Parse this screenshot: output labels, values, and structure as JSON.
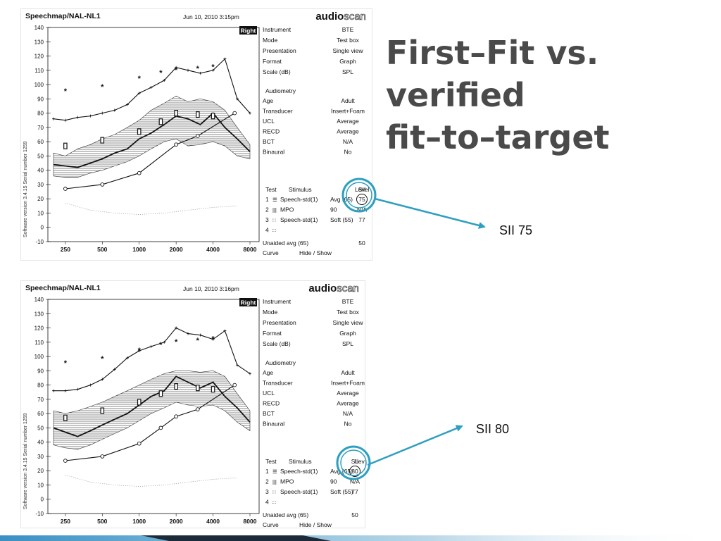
{
  "slide": {
    "title_lines": [
      "First–Fit vs.",
      "verified",
      "fit–to–target"
    ],
    "callout_top": "SII 75",
    "callout_bottom": "SII 80",
    "accent_color": "#2f9fbf"
  },
  "chart_data": [
    {
      "type": "line",
      "title": "Speechmap/NAL-NL1",
      "timestamp": "Jun 10, 2010 3:15pm",
      "brand_bold": "audio",
      "brand_outline": "scan",
      "ear_badge": "Right",
      "side_caption": "Software version 3.4.15    Serial number 1259",
      "y_ticks": [
        "140",
        "130",
        "120",
        "110",
        "100",
        "90",
        "80",
        "70",
        "60",
        "50",
        "40",
        "30",
        "20",
        "10",
        "0",
        "-10"
      ],
      "ylim": [
        -10,
        140
      ],
      "x_ticks": [
        {
          "label": "250",
          "hz": 250
        },
        {
          "label": "500",
          "hz": 500
        },
        {
          "label": "1000",
          "hz": 1000
        },
        {
          "label": "2000",
          "hz": 2000
        },
        {
          "label": "4000",
          "hz": 4000
        },
        {
          "label": "8000",
          "hz": 8000
        }
      ],
      "x_scale": "log",
      "info_rows": [
        [
          "Instrument",
          "BTE"
        ],
        [
          "Mode",
          "Test box"
        ],
        [
          "Presentation",
          "Single view"
        ],
        [
          "Format",
          "Graph"
        ],
        [
          "Scale (dB)",
          "SPL"
        ]
      ],
      "audiometry_heading": "Audiometry",
      "audiometry_rows": [
        [
          "Age",
          "Adult"
        ],
        [
          "Transducer",
          "Insert+Foam"
        ],
        [
          "UCL",
          "Average"
        ],
        [
          "RECD",
          "Average"
        ],
        [
          "BCT",
          "N/A"
        ],
        [
          "Binaural",
          "No"
        ]
      ],
      "test_header": [
        "Test",
        "Stimulus",
        "Level",
        "SII"
      ],
      "test_rows": [
        [
          "1",
          "☰",
          "Speech-std(1)",
          "Avg (65)",
          "75"
        ],
        [
          "2",
          "|||",
          "MPO",
          "90",
          "N/A"
        ],
        [
          "3",
          "∷",
          "Speech-std(1)",
          "Soft (55)",
          "77"
        ],
        [
          "4",
          "∷",
          "",
          "",
          ""
        ]
      ],
      "unaided": [
        "Unaided avg (65)",
        "50"
      ],
      "curve_row": [
        "Curve",
        "Hide / Show"
      ],
      "circled_sii": "75",
      "series": [
        {
          "key": "mpo",
          "style": "plus",
          "x": [
            200,
            250,
            315,
            400,
            500,
            630,
            800,
            1000,
            1250,
            1600,
            2000,
            2500,
            3150,
            4000,
            5000,
            6300,
            8000
          ],
          "y": [
            76,
            75,
            77,
            78,
            80,
            82,
            86,
            94,
            98,
            103,
            112,
            110,
            108,
            110,
            118,
            90,
            80
          ]
        },
        {
          "key": "ucl",
          "style": "star",
          "x": [
            250,
            500,
            1000,
            1500,
            2000,
            3000,
            4000
          ],
          "y": [
            95,
            98,
            104,
            108,
            110,
            111,
            112
          ]
        },
        {
          "key": "threshold",
          "style": "circle",
          "x": [
            250,
            500,
            1000,
            2000,
            3000,
            6000
          ],
          "y": [
            27,
            30,
            38,
            58,
            64,
            80
          ]
        },
        {
          "key": "speech_upper",
          "style": "none",
          "x": [
            200,
            250,
            315,
            400,
            500,
            630,
            800,
            1000,
            1250,
            1600,
            2000,
            2500,
            3150,
            4000,
            5000,
            6300,
            8000
          ],
          "y": [
            52,
            50,
            55,
            58,
            62,
            65,
            70,
            75,
            82,
            87,
            92,
            88,
            90,
            88,
            82,
            70,
            58
          ]
        },
        {
          "key": "speech_lower",
          "style": "none",
          "x": [
            200,
            250,
            315,
            400,
            500,
            630,
            800,
            1000,
            1250,
            1600,
            2000,
            2500,
            3150,
            4000,
            5000,
            6300,
            8000
          ],
          "y": [
            36,
            35,
            35,
            38,
            40,
            43,
            46,
            50,
            55,
            60,
            62,
            57,
            58,
            60,
            57,
            50,
            48
          ]
        },
        {
          "key": "speech_ltass",
          "style": "bold",
          "x": [
            200,
            250,
            315,
            400,
            500,
            630,
            800,
            1000,
            1250,
            1600,
            2000,
            2500,
            3150,
            4000,
            5000,
            6300,
            8000
          ],
          "y": [
            44,
            43,
            42,
            45,
            48,
            52,
            55,
            62,
            66,
            72,
            78,
            76,
            72,
            80,
            70,
            62,
            53
          ]
        },
        {
          "key": "targets",
          "style": "target",
          "x": [
            250,
            500,
            1000,
            1500,
            2000,
            3000,
            4000
          ],
          "y": [
            57,
            61,
            67,
            74,
            80,
            79,
            78
          ]
        },
        {
          "key": "ambient",
          "style": "dot",
          "x": [
            250,
            400,
            630,
            1000,
            1600,
            2500,
            4000,
            6300
          ],
          "y": [
            17,
            12,
            10,
            9,
            10,
            12,
            14,
            15
          ]
        }
      ]
    },
    {
      "type": "line",
      "title": "Speechmap/NAL-NL1",
      "timestamp": "Jun 10, 2010 3:16pm",
      "brand_bold": "audio",
      "brand_outline": "scan",
      "ear_badge": "Right",
      "side_caption": "Software version 3.4.15    Serial number 1259",
      "y_ticks": [
        "140",
        "130",
        "120",
        "110",
        "100",
        "90",
        "80",
        "70",
        "60",
        "50",
        "40",
        "30",
        "20",
        "10",
        "0",
        "-10"
      ],
      "ylim": [
        -10,
        140
      ],
      "x_ticks": [
        {
          "label": "250",
          "hz": 250
        },
        {
          "label": "500",
          "hz": 500
        },
        {
          "label": "1000",
          "hz": 1000
        },
        {
          "label": "2000",
          "hz": 2000
        },
        {
          "label": "4000",
          "hz": 4000
        },
        {
          "label": "8000",
          "hz": 8000
        }
      ],
      "x_scale": "log",
      "info_rows": [
        [
          "Instrument",
          "BTE"
        ],
        [
          "Mode",
          "Test box"
        ],
        [
          "Presentation",
          "Single view"
        ],
        [
          "Format",
          "Graph"
        ],
        [
          "Scale (dB)",
          "SPL"
        ]
      ],
      "audiometry_heading": "Audiometry",
      "audiometry_rows": [
        [
          "Age",
          "Adult"
        ],
        [
          "Transducer",
          "Insert+Foam"
        ],
        [
          "UCL",
          "Average"
        ],
        [
          "RECD",
          "Average"
        ],
        [
          "BCT",
          "N/A"
        ],
        [
          "Binaural",
          "No"
        ]
      ],
      "test_header": [
        "Test",
        "Stimulus",
        "Level",
        "SII"
      ],
      "test_rows": [
        [
          "1",
          "☰",
          "Speech-std(1)",
          "Avg (65)",
          "80"
        ],
        [
          "2",
          "|||",
          "MPO",
          "90",
          "N/A"
        ],
        [
          "3",
          "∷",
          "Speech-std(1)",
          "Soft (55)",
          "77"
        ],
        [
          "4",
          "∷",
          "",
          "",
          ""
        ]
      ],
      "unaided": [
        "Unaided avg (65)",
        "50"
      ],
      "curve_row": [
        "Curve",
        "Hide / Show"
      ],
      "circled_sii": "80",
      "series": [
        {
          "key": "mpo",
          "style": "plus",
          "x": [
            200,
            250,
            315,
            400,
            500,
            630,
            800,
            1000,
            1250,
            1600,
            2000,
            2500,
            3150,
            4000,
            5000,
            6300,
            8000
          ],
          "y": [
            76,
            76,
            77,
            80,
            84,
            91,
            99,
            104,
            107,
            110,
            120,
            116,
            115,
            112,
            118,
            94,
            88
          ]
        },
        {
          "key": "ucl",
          "style": "star",
          "x": [
            250,
            500,
            1000,
            1500,
            2000,
            3000,
            4000
          ],
          "y": [
            95,
            98,
            104,
            108,
            110,
            111,
            112
          ]
        },
        {
          "key": "threshold",
          "style": "circle",
          "x": [
            250,
            500,
            1000,
            1500,
            2000,
            3000,
            6000
          ],
          "y": [
            27,
            30,
            39,
            50,
            58,
            63,
            80
          ]
        },
        {
          "key": "speech_upper",
          "style": "none",
          "x": [
            200,
            250,
            315,
            400,
            500,
            630,
            800,
            1000,
            1250,
            1600,
            2000,
            2500,
            3150,
            4000,
            5000,
            6300,
            8000
          ],
          "y": [
            62,
            60,
            62,
            65,
            68,
            72,
            76,
            80,
            84,
            88,
            90,
            90,
            89,
            90,
            86,
            74,
            62
          ]
        },
        {
          "key": "speech_lower",
          "style": "none",
          "x": [
            200,
            250,
            315,
            400,
            500,
            630,
            800,
            1000,
            1250,
            1600,
            2000,
            2500,
            3150,
            4000,
            5000,
            6300,
            8000
          ],
          "y": [
            38,
            36,
            35,
            38,
            42,
            46,
            50,
            55,
            60,
            64,
            68,
            66,
            65,
            66,
            62,
            54,
            48
          ]
        },
        {
          "key": "speech_ltass",
          "style": "bold",
          "x": [
            200,
            250,
            315,
            400,
            500,
            630,
            800,
            1000,
            1250,
            1600,
            2000,
            2500,
            3150,
            4000,
            5000,
            6300,
            8000
          ],
          "y": [
            50,
            47,
            44,
            48,
            52,
            56,
            60,
            66,
            72,
            76,
            86,
            82,
            78,
            82,
            72,
            64,
            54
          ]
        },
        {
          "key": "targets",
          "style": "target",
          "x": [
            250,
            500,
            1000,
            1500,
            2000,
            3000,
            4000
          ],
          "y": [
            57,
            62,
            68,
            74,
            79,
            78,
            77
          ]
        },
        {
          "key": "ambient",
          "style": "dot",
          "x": [
            250,
            400,
            630,
            1000,
            1600,
            2500,
            4000,
            6300
          ],
          "y": [
            17,
            12,
            10,
            9,
            10,
            12,
            14,
            15
          ]
        }
      ]
    }
  ]
}
